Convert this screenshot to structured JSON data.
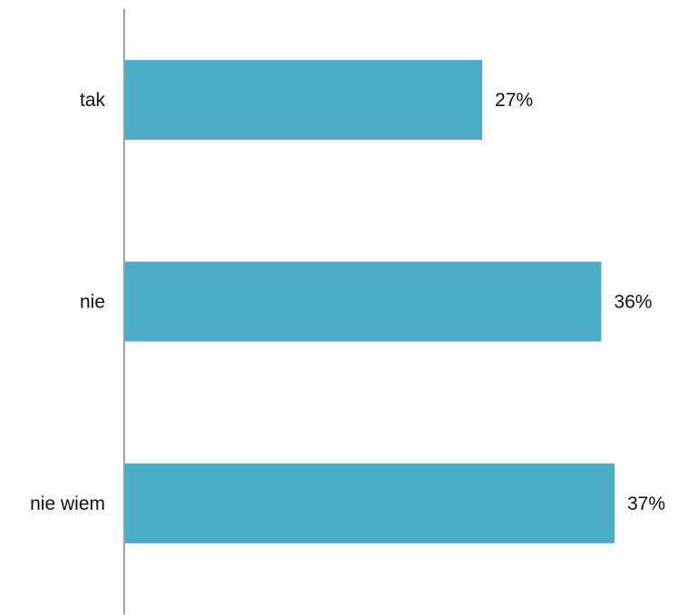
{
  "chart_data": {
    "type": "bar",
    "orientation": "horizontal",
    "categories": [
      "tak",
      "nie",
      "nie wiem"
    ],
    "values": [
      27,
      36,
      37
    ],
    "value_labels": [
      "27%",
      "36%",
      "37%"
    ],
    "unit": "%",
    "title": "",
    "xlabel": "",
    "ylabel": "",
    "xlim": [
      0,
      37
    ],
    "grid": false,
    "legend": "none",
    "bar_color": "#4BACC6",
    "axis_color": "#808080"
  }
}
